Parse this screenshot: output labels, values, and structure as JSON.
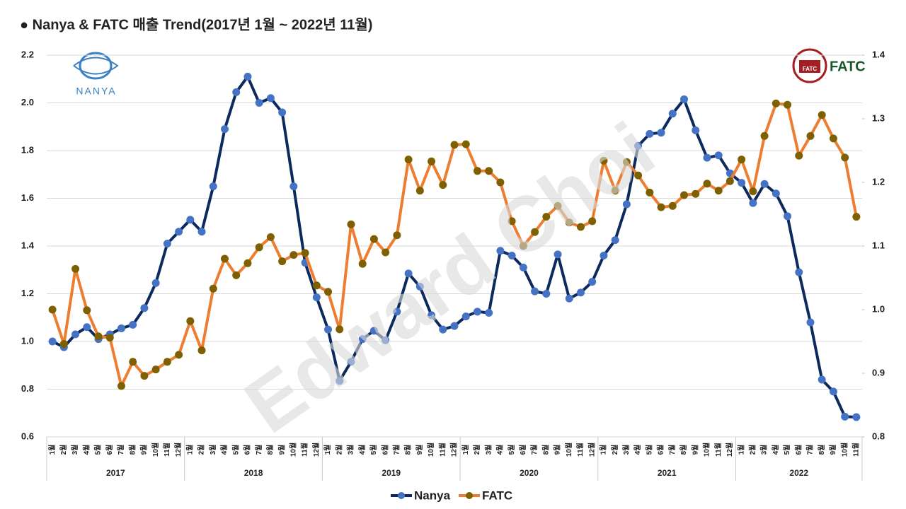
{
  "chart_data": {
    "type": "line",
    "title": "● Nanya & FATC 매출 Trend(2017년 1월 ~ 2022년 11월)",
    "watermark": "Edward Choi",
    "logos": {
      "left": "NANYA",
      "right": "FATC",
      "right_badge": "FATC"
    },
    "groups": [
      {
        "label": "2017",
        "categories": [
          "1월",
          "2월",
          "3월",
          "4월",
          "5월",
          "6월",
          "7월",
          "8월",
          "9월",
          "10월",
          "11월",
          "12월"
        ]
      },
      {
        "label": "2018",
        "categories": [
          "1월",
          "2월",
          "3월",
          "4월",
          "5월",
          "6월",
          "7월",
          "8월",
          "9월",
          "10월",
          "11월",
          "12월"
        ]
      },
      {
        "label": "2019",
        "categories": [
          "1월",
          "2월",
          "3월",
          "4월",
          "5월",
          "6월",
          "7월",
          "8월",
          "9월",
          "10월",
          "11월",
          "12월"
        ]
      },
      {
        "label": "2020",
        "categories": [
          "1월",
          "2월",
          "3월",
          "4월",
          "5월",
          "6월",
          "7월",
          "8월",
          "9월",
          "10월",
          "11월",
          "12월"
        ]
      },
      {
        "label": "2021",
        "categories": [
          "1월",
          "2월",
          "3월",
          "4월",
          "5월",
          "6월",
          "7월",
          "8월",
          "9월",
          "10월",
          "11월",
          "12월"
        ]
      },
      {
        "label": "2022",
        "categories": [
          "1월",
          "2월",
          "3월",
          "4월",
          "5월",
          "6월",
          "7월",
          "8월",
          "9월",
          "10월",
          "11월"
        ]
      }
    ],
    "series": [
      {
        "name": "Nanya",
        "color": "#0d2a5e",
        "marker_color": "#4472c4",
        "axis": "y",
        "values": [
          1.0,
          0.976,
          1.03,
          1.06,
          1.01,
          1.03,
          1.055,
          1.07,
          1.14,
          1.245,
          1.41,
          1.46,
          1.51,
          1.46,
          1.65,
          1.89,
          2.045,
          2.11,
          2.0,
          2.02,
          1.96,
          1.65,
          1.33,
          1.185,
          1.05,
          0.835,
          0.915,
          1.01,
          1.045,
          1.005,
          1.125,
          1.285,
          1.23,
          1.11,
          1.05,
          1.065,
          1.105,
          1.125,
          1.12,
          1.38,
          1.36,
          1.31,
          1.21,
          1.2,
          1.365,
          1.18,
          1.205,
          1.25,
          1.36,
          1.425,
          1.575,
          1.82,
          1.87,
          1.875,
          1.955,
          2.015,
          1.885,
          1.77,
          1.78,
          1.705,
          1.665,
          1.58,
          1.66,
          1.62,
          1.525,
          1.29,
          1.08,
          0.84,
          0.79,
          0.685,
          0.683
        ]
      },
      {
        "name": "FATC",
        "color": "#ed7d31",
        "marker_color": "#7f6000",
        "axis": "y2",
        "values": [
          1.0,
          0.946,
          1.064,
          0.999,
          0.958,
          0.956,
          0.88,
          0.918,
          0.896,
          0.906,
          0.918,
          0.929,
          0.982,
          0.936,
          1.033,
          1.08,
          1.054,
          1.073,
          1.098,
          1.114,
          1.076,
          1.086,
          1.089,
          1.038,
          1.028,
          0.969,
          1.134,
          1.072,
          1.111,
          1.09,
          1.117,
          1.236,
          1.187,
          1.233,
          1.196,
          1.259,
          1.26,
          1.218,
          1.218,
          1.2,
          1.139,
          1.1,
          1.122,
          1.146,
          1.163,
          1.137,
          1.13,
          1.139,
          1.234,
          1.187,
          1.232,
          1.211,
          1.184,
          1.161,
          1.163,
          1.18,
          1.182,
          1.198,
          1.187,
          1.202,
          1.236,
          1.186,
          1.273,
          1.324,
          1.322,
          1.242,
          1.273,
          1.306,
          1.269,
          1.239,
          1.146
        ]
      }
    ],
    "ylim": [
      0.6,
      2.2
    ],
    "yticks": [
      0.6,
      0.8,
      {
        "value": 1,
        "label": "1.0"
      },
      1.2,
      1.4,
      1.6,
      1.8,
      {
        "value": 2,
        "label": "2.0"
      },
      2.2
    ],
    "y2lim": [
      0.8,
      1.4
    ],
    "y2ticks": [
      0.8,
      0.9,
      {
        "value": 1,
        "label": "1.0"
      },
      1.1,
      1.2,
      1.3,
      1.4
    ],
    "grid": true,
    "legend": "bottom"
  }
}
